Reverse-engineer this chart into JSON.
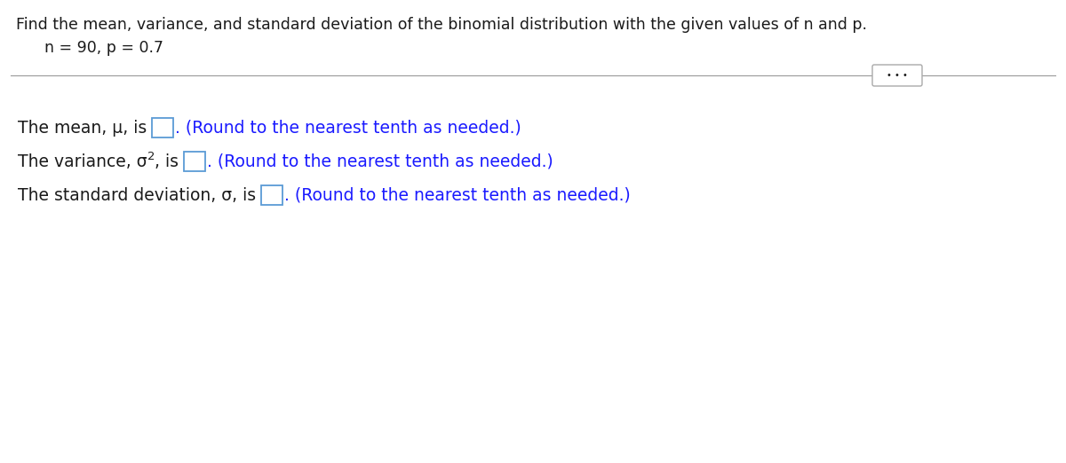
{
  "title_line": "Find the mean, variance, and standard deviation of the binomial distribution with the given values of n and p.",
  "params_line": "n = 90, p = 0.7",
  "line1_pre": "The mean, μ, is ",
  "line1_post": ". (Round to the nearest tenth as needed.)",
  "line2_pre": "The variance, σ",
  "line2_sup": "2",
  "line2_mid": ", is ",
  "line2_post": ". (Round to the nearest tenth as needed.)",
  "line3_pre": "The standard deviation, σ, is ",
  "line3_post": ". (Round to the nearest tenth as needed.)",
  "separator_dots": "• • •",
  "bg_color": "#ffffff",
  "text_color_black": "#1a1a1a",
  "text_color_blue": "#1a1aff",
  "box_color": "#5b9bd5",
  "separator_color": "#999999",
  "title_fontsize": 12.5,
  "body_fontsize": 13.5,
  "params_fontsize": 12.5,
  "sup_fontsize": 9.5
}
